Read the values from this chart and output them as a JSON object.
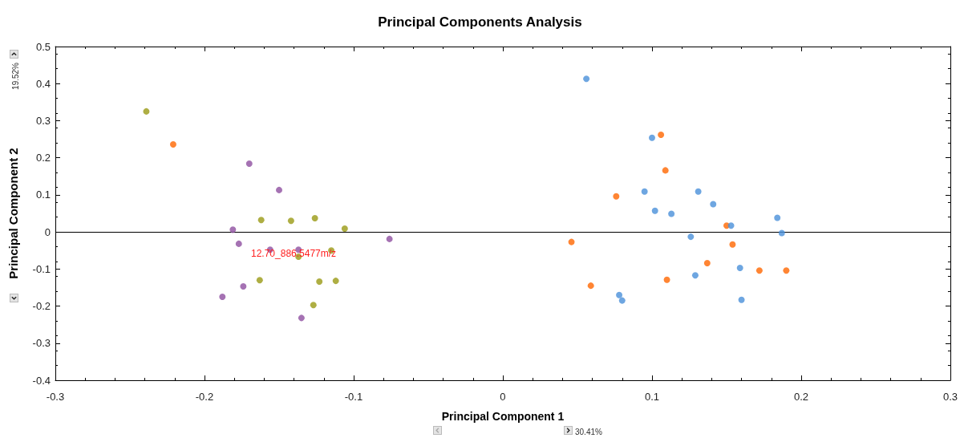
{
  "chart_data": {
    "type": "scatter",
    "title": "Principal Components Analysis",
    "xlabel": "Principal Component 1",
    "ylabel": "Principal Component 2",
    "annotations": [
      "30.41%",
      "19.52%",
      "12.70_886.5477m/z"
    ],
    "xlim": [
      -0.3,
      0.3
    ],
    "xticks": [
      -0.3,
      -0.2,
      -0.1,
      0.0,
      0.1,
      0.2,
      0.3
    ],
    "ylim": [
      -0.4,
      0.5
    ],
    "yticks": [
      -0.4,
      -0.3,
      -0.2,
      -0.1,
      0.0,
      0.1,
      0.2,
      0.3,
      0.4,
      0.5
    ],
    "ref_lines": [
      {
        "axis": "y",
        "value": 0,
        "color": "#000000"
      }
    ],
    "grid": false,
    "marker": "circle",
    "series": [
      {
        "color": "#9a9a14",
        "x": [
          -0.239,
          -0.162,
          -0.142,
          -0.126,
          -0.106,
          -0.163,
          -0.137,
          -0.115,
          -0.123,
          -0.112,
          -0.127
        ],
        "values": [
          0.325,
          0.032,
          0.03,
          0.037,
          0.009,
          -0.13,
          -0.067,
          -0.05,
          -0.134,
          -0.132,
          -0.197
        ]
      },
      {
        "color": "#ff6600",
        "x": [
          -0.221,
          0.106,
          0.109,
          0.076,
          0.15,
          0.046,
          0.154,
          0.137,
          0.172,
          0.19,
          0.11,
          0.059
        ],
        "values": [
          0.236,
          0.262,
          0.166,
          0.096,
          0.017,
          -0.027,
          -0.034,
          -0.084,
          -0.104,
          -0.104,
          -0.129,
          -0.145
        ]
      },
      {
        "color": "#8e4fa0",
        "x": [
          -0.17,
          -0.15,
          -0.181,
          -0.177,
          -0.156,
          -0.137,
          -0.076,
          -0.174,
          -0.188,
          -0.135
        ],
        "values": [
          0.184,
          0.113,
          0.006,
          -0.032,
          -0.048,
          -0.048,
          -0.019,
          -0.147,
          -0.175,
          -0.232
        ]
      },
      {
        "color": "#4a90d9",
        "x": [
          0.056,
          0.1,
          0.095,
          0.131,
          0.102,
          0.113,
          0.141,
          0.184,
          0.153,
          0.187,
          0.126,
          0.129,
          0.159,
          0.078,
          0.08,
          0.16
        ],
        "values": [
          0.413,
          0.254,
          0.109,
          0.109,
          0.057,
          0.049,
          0.075,
          0.038,
          0.017,
          -0.003,
          -0.013,
          -0.117,
          -0.097,
          -0.17,
          -0.185,
          -0.183
        ]
      }
    ]
  }
}
